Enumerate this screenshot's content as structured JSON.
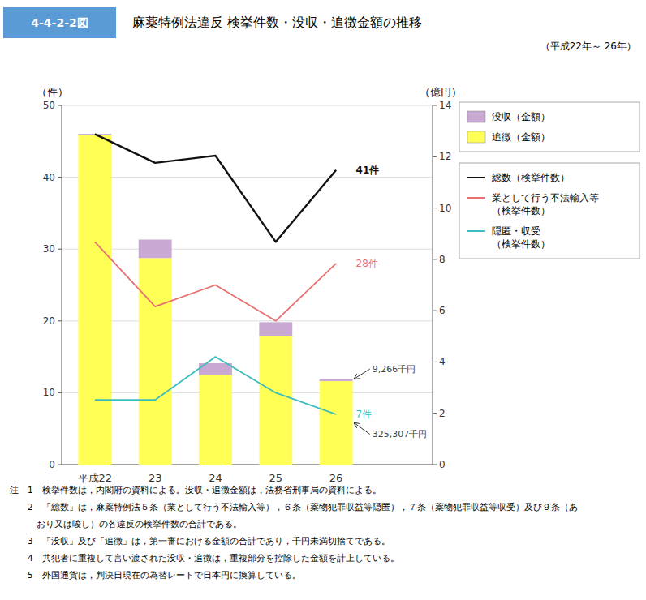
{
  "chart_data": {
    "type": "bar",
    "header": "4-4-2-2図",
    "title": "麻薬特例法違反 検挙件数・没収・追徴金額の推移",
    "subtitle": "（平成22年～ 26年）",
    "ylabel": "（件）",
    "y2label": "（億円）",
    "categories": [
      "平成22",
      "23",
      "24",
      "25",
      "26"
    ],
    "series": [
      {
        "name": "追徴（金額）",
        "type": "bar",
        "axis": "y2",
        "color": "#FFFF55",
        "values": [
          12.84,
          8.05,
          3.5,
          5.0,
          3.25307
        ]
      },
      {
        "name": "没収（金額）",
        "type": "bar",
        "axis": "y2",
        "color": "#C9A8D4",
        "values": [
          0.05,
          0.72,
          0.45,
          0.55,
          0.09266
        ]
      },
      {
        "name": "総数（検挙件数）",
        "type": "line",
        "color": "#111111",
        "values": [
          46,
          42,
          43,
          31,
          41
        ]
      },
      {
        "name": "業として行う不法輸入等\n（検挙件数）",
        "type": "line",
        "color": "#E87070",
        "values": [
          31,
          22,
          25,
          20,
          28
        ]
      },
      {
        "name": "隠匿・収受\n（検挙件数）",
        "type": "line",
        "color": "#3DBDBD",
        "values": [
          9,
          9,
          15,
          10,
          7
        ]
      }
    ],
    "stacked": true,
    "ylim": [
      0,
      50
    ],
    "yticks": [
      0,
      10,
      20,
      30,
      40,
      50
    ],
    "y2lim": [
      0,
      14
    ],
    "y2ticks": [
      0,
      2,
      4,
      6,
      8,
      10,
      12,
      14
    ],
    "grid": true,
    "legend": "right",
    "annotations": [
      {
        "text": "41件",
        "x": "26",
        "y": 41
      },
      {
        "text": "28件",
        "x": "26",
        "y": 28
      },
      {
        "text": "7件",
        "x": "26",
        "y": 7
      },
      {
        "text": "9,266千円",
        "x": "26",
        "y": 0.09266,
        "axis": "y2"
      },
      {
        "text": "325,307千円",
        "x": "26",
        "y": 3.25307,
        "axis": "y2"
      }
    ],
    "notes": [
      "注　1　検挙件数は，内閣府の資料による。没収・追徴金額は，法務省刑事局の資料による。",
      "　　2　「総数」は，麻薬特例法５条（業として行う不法輸入等），６条（薬物犯罪収益等隠匿），７条（薬物犯罪収益等収受）及び９条（あ",
      "　　　おり又は唆し）の各違反の検挙件数の合計である。",
      "　　3　「没収」及び「追徴」は，第一審における金額の合計であり，千円未満切捨てである。",
      "　　4　共犯者に重複して言い渡された没収・追徴は，重複部分を控除した金額を計上している。",
      "　　5　外国通貨は，判決日現在の為替レートで日本円に換算している。"
    ]
  }
}
